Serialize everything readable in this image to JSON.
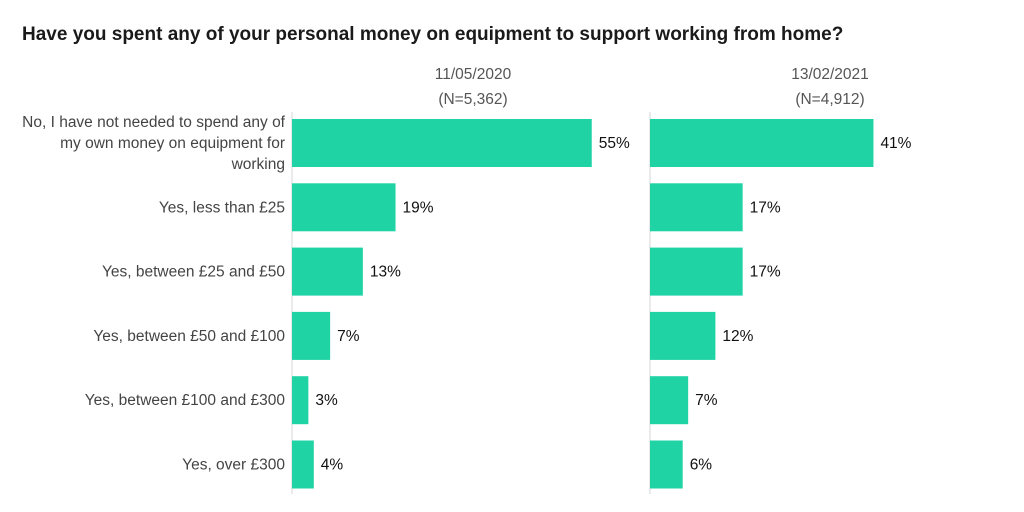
{
  "title": "Have you spent any of your personal money on equipment to support working from home?",
  "colors": {
    "bar": "#1fd3a5",
    "axis": "#d6d6d6"
  },
  "chart_data": {
    "type": "bar",
    "orientation": "horizontal",
    "categories": [
      [
        "No, I have not needed to spend any of",
        "my own money on equipment for",
        "working"
      ],
      [
        "Yes, less than £25"
      ],
      [
        "Yes, between £25 and £50"
      ],
      [
        "Yes, between £50 and £100"
      ],
      [
        "Yes, between £100 and £300"
      ],
      [
        "Yes, over £300"
      ]
    ],
    "series": [
      {
        "date": "11/05/2020",
        "n": "(N=5,362)",
        "values": [
          55,
          19,
          13,
          7,
          3,
          4
        ],
        "labels": [
          "55%",
          "19%",
          "13%",
          "7%",
          "3%",
          "4%"
        ]
      },
      {
        "date": "13/02/2021",
        "n": "(N=4,912)",
        "values": [
          41,
          17,
          17,
          12,
          7,
          6
        ],
        "labels": [
          "41%",
          "17%",
          "17%",
          "12%",
          "7%",
          "6%"
        ]
      }
    ],
    "xlim": [
      0,
      100
    ],
    "grid": false,
    "legend": "none"
  }
}
